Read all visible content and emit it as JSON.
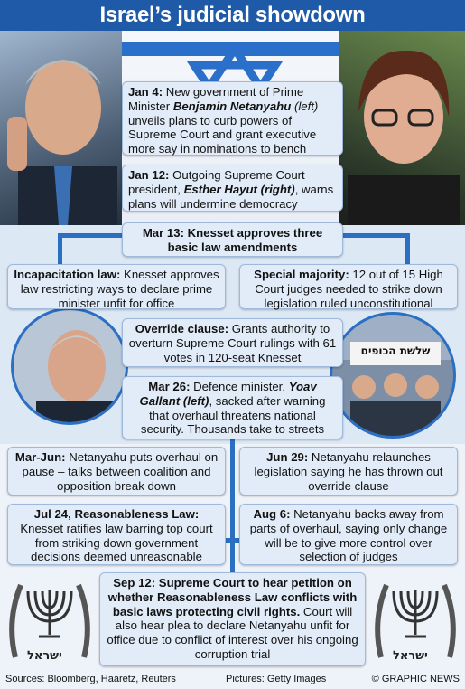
{
  "title": "Israel’s judicial showdown",
  "events": {
    "jan4": {
      "date": "Jan 4:",
      "t1": " New government of Prime Minister ",
      "name": "Benjamin Netanyahu",
      "note": " (left)",
      "t2": " unveils plans to curb powers of Supreme Court and grant executive more say in nominations to bench"
    },
    "jan12": {
      "date": "Jan 12:",
      "t1": " Outgoing Supreme Court president, ",
      "name": "Esther Hayut",
      "note": " (right)",
      "t2": ", warns plans will undermine democracy"
    },
    "mar13": {
      "text": "Mar 13: Knesset approves three basic law amendments"
    },
    "incap": {
      "label": "Incapacitation law:",
      "text": " Knesset approves law restricting ways to declare prime minister unfit for office"
    },
    "special": {
      "label": "Special majority:",
      "text": " 12 out of 15 High Court judges needed to strike down legislation ruled unconstitutional"
    },
    "override": {
      "label": "Override clause:",
      "text": " Grants authority to overturn Supreme Court rulings with 61 votes in 120-seat Knesset"
    },
    "mar26": {
      "date": "Mar 26:",
      "t1": " Defence minister, ",
      "name": "Yoav Gallant",
      "note": " (left)",
      "t2": ", sacked after warning that overhaul threatens national security. Thousands take to streets"
    },
    "marjun": {
      "date": "Mar-Jun:",
      "text": " Netanyahu puts overhaul on pause – talks between coalition and opposition break down"
    },
    "jun29": {
      "date": "Jun 29:",
      "text": " Netanyahu relaunches legislation saying he has thrown out override clause"
    },
    "jul24": {
      "date": "Jul 24, Reasonableness Law:",
      "text": " Knesset ratifies law barring top court from striking down government decisions deemed unreasonable"
    },
    "aug6": {
      "date": "Aug 6:",
      "text": " Netanyahu backs away from parts of overhaul, saying only change will be to give more control over selection of judges"
    },
    "sep12": {
      "bold": "Sep 12: Supreme Court to hear petition on whether Reasonableness Law conflicts with basic laws protecting civil rights.",
      "text": " Court will also hear plea to declare Netanyahu unfit for office due to conflict of interest over his ongoing corruption trial"
    }
  },
  "protest_sign": "שלשת הכופים",
  "emblem_text": "ישראל",
  "footer": {
    "sources": "Sources: Bloomberg, Haaretz, Reuters",
    "pictures": "Pictures: Getty Images",
    "credit": "© GRAPHIC NEWS"
  },
  "colors": {
    "accent": "#1f5aa8",
    "card_bg": "#e2ecf8",
    "line": "#2b6fc2"
  }
}
